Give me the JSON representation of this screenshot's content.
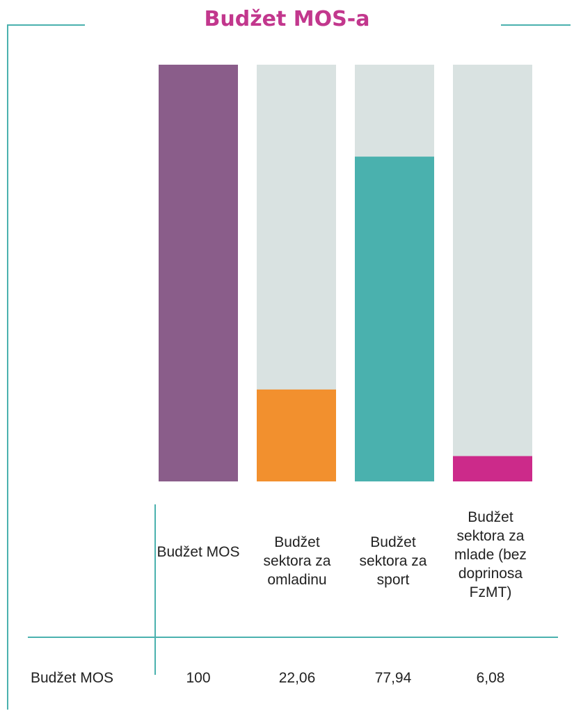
{
  "title": "Budžet MOS-a",
  "colors": {
    "frame": "#4ab1ae",
    "background_bar": "#d9e2e1",
    "title": "#c2378d"
  },
  "chart_data": {
    "type": "bar",
    "title": "Budžet MOS-a",
    "categories": [
      "Budžet MOS",
      "Budžet sektora za omladinu",
      "Budžet sektora za sport",
      "Budžet sektora za mlade (bez doprinosa FzMT)"
    ],
    "series": [
      {
        "name": "Budžet MOS",
        "values": [
          100,
          22.06,
          77.94,
          6.08
        ],
        "colors": [
          "#8a5d8a",
          "#f2902e",
          "#4ab1ae",
          "#cc2a8a"
        ]
      }
    ],
    "ylim": [
      0,
      100
    ],
    "grid": false,
    "legend": "none",
    "data_table": {
      "row_label": "Budžet MOS",
      "values_text": [
        "100",
        "22,06",
        "77,94",
        "6,08"
      ]
    }
  }
}
